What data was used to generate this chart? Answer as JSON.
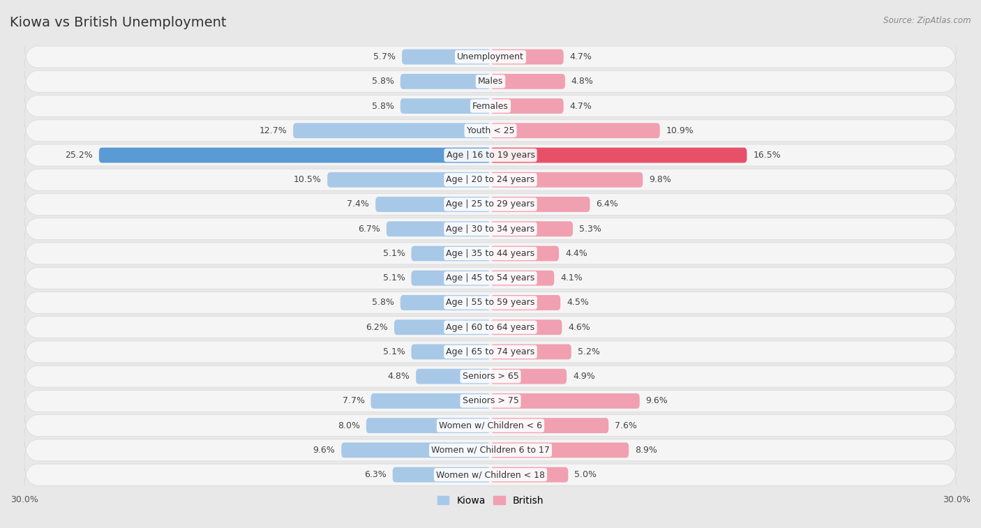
{
  "title": "Kiowa vs British Unemployment",
  "source": "Source: ZipAtlas.com",
  "categories": [
    "Unemployment",
    "Males",
    "Females",
    "Youth < 25",
    "Age | 16 to 19 years",
    "Age | 20 to 24 years",
    "Age | 25 to 29 years",
    "Age | 30 to 34 years",
    "Age | 35 to 44 years",
    "Age | 45 to 54 years",
    "Age | 55 to 59 years",
    "Age | 60 to 64 years",
    "Age | 65 to 74 years",
    "Seniors > 65",
    "Seniors > 75",
    "Women w/ Children < 6",
    "Women w/ Children 6 to 17",
    "Women w/ Children < 18"
  ],
  "kiowa_values": [
    5.7,
    5.8,
    5.8,
    12.7,
    25.2,
    10.5,
    7.4,
    6.7,
    5.1,
    5.1,
    5.8,
    6.2,
    5.1,
    4.8,
    7.7,
    8.0,
    9.6,
    6.3
  ],
  "british_values": [
    4.7,
    4.8,
    4.7,
    10.9,
    16.5,
    9.8,
    6.4,
    5.3,
    4.4,
    4.1,
    4.5,
    4.6,
    5.2,
    4.9,
    9.6,
    7.6,
    8.9,
    5.0
  ],
  "kiowa_color": "#a8c8e8",
  "british_color": "#f0a0b0",
  "kiowa_highlight_color": "#5b9bd5",
  "british_highlight_color": "#e8506a",
  "axis_limit": 30.0,
  "background_color": "#e8e8e8",
  "row_bg_color": "#f5f5f5",
  "row_border_color": "#d8d8d8",
  "title_fontsize": 14,
  "label_fontsize": 9,
  "value_fontsize": 9,
  "legend_fontsize": 10
}
